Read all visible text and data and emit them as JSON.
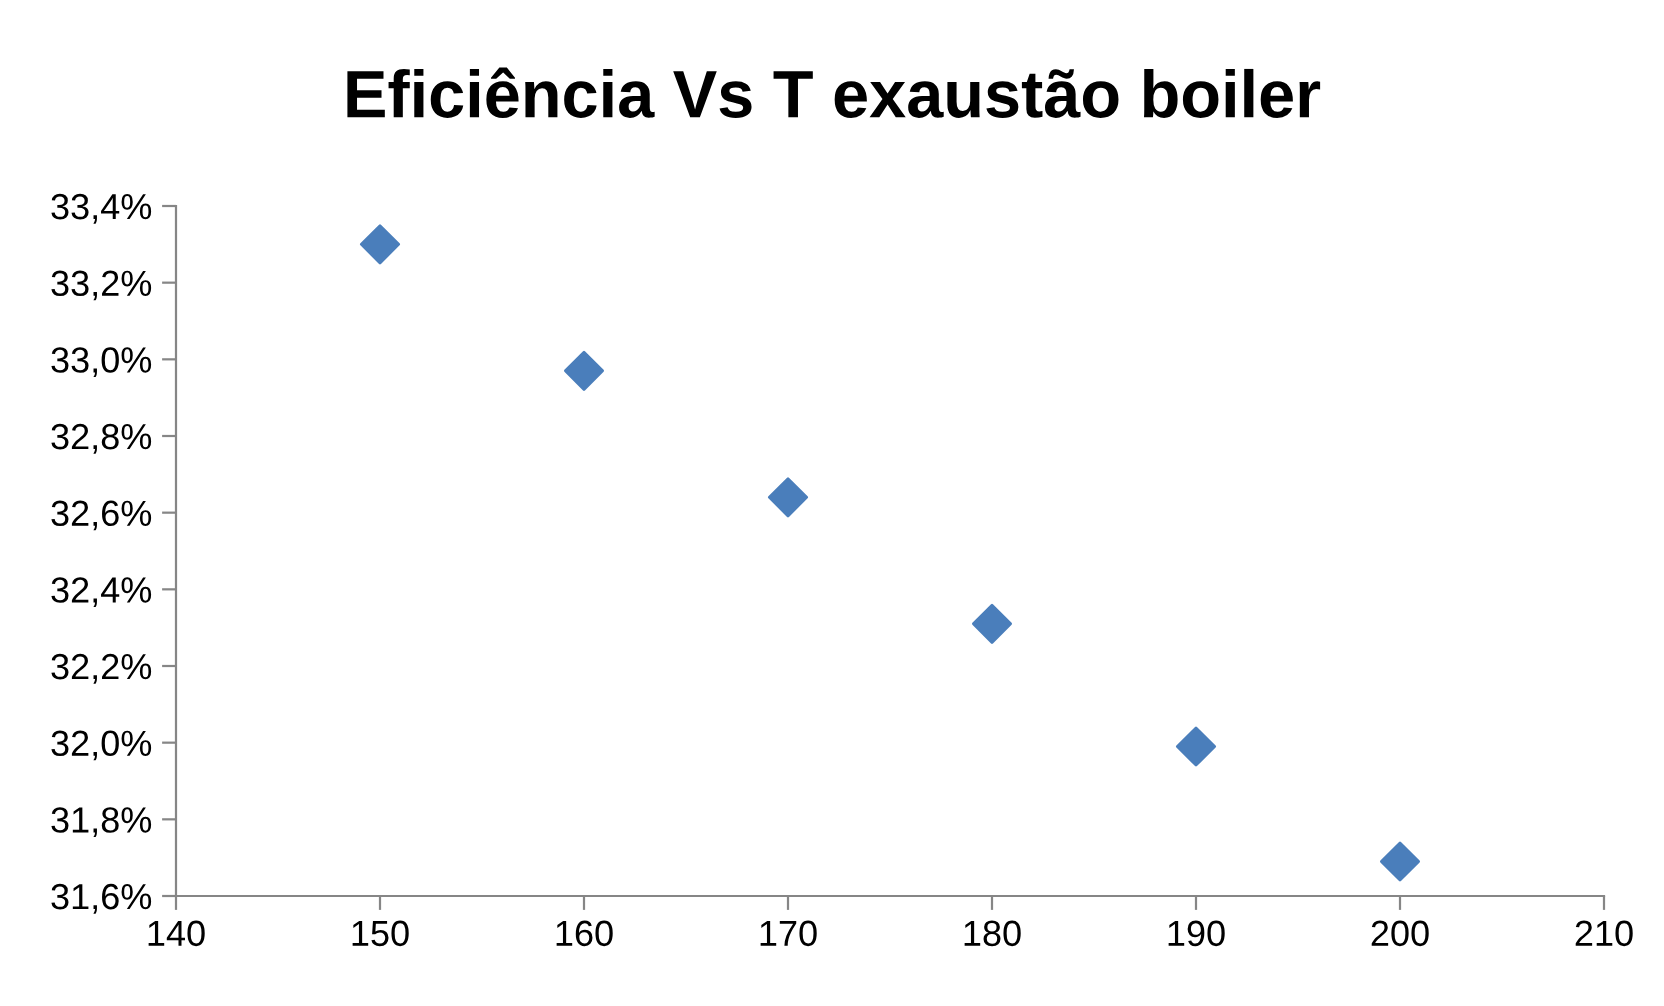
{
  "chart_data": {
    "type": "scatter",
    "title": "Eficiência Vs T exaustão boiler",
    "x": [
      150,
      160,
      170,
      180,
      190,
      200
    ],
    "series": [
      {
        "color": "#4a7ebb",
        "values": [
          33.3,
          32.97,
          32.64,
          32.31,
          31.99,
          31.69
        ]
      }
    ],
    "xlim": [
      140,
      210
    ],
    "xticks": [
      140,
      150,
      160,
      170,
      180,
      190,
      200,
      210
    ],
    "ylim": [
      31.6,
      33.4
    ],
    "yticks": [
      {
        "value": 31.6,
        "label": "31,6%"
      },
      {
        "value": 31.8,
        "label": "31,8%"
      },
      {
        "value": 32.0,
        "label": "32,0%"
      },
      {
        "value": 32.2,
        "label": "32,2%"
      },
      {
        "value": 32.4,
        "label": "32,4%"
      },
      {
        "value": 32.6,
        "label": "32,6%"
      },
      {
        "value": 32.8,
        "label": "32,8%"
      },
      {
        "value": 33.0,
        "label": "33,0%"
      },
      {
        "value": 33.2,
        "label": "33,2%"
      },
      {
        "value": 33.4,
        "label": "33,4%"
      }
    ],
    "marker": "diamond",
    "grid": false
  }
}
